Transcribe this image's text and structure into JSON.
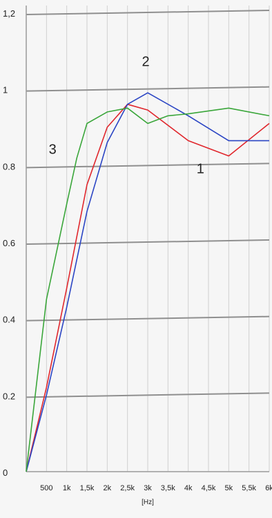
{
  "chart_data": {
    "type": "line",
    "title": "",
    "xlabel": "[Hz]",
    "ylabel": "",
    "xlim": [
      0,
      6000
    ],
    "ylim": [
      0,
      1.2
    ],
    "grid": true,
    "x_ticks": [
      500,
      1000,
      1500,
      2000,
      2500,
      3000,
      3500,
      4000,
      4500,
      5000,
      5500,
      6000
    ],
    "x_tick_labels": [
      "500",
      "1k",
      "1,5k",
      "2k",
      "2,5k",
      "3k",
      "3,5k",
      "4k",
      "4,5k",
      "5k",
      "5,5k",
      "6k"
    ],
    "y_ticks": [
      0,
      0.2,
      0.4,
      0.6,
      0.8,
      1.0,
      1.2
    ],
    "y_tick_labels": [
      "0",
      "0.2",
      "0.4",
      "0.6",
      "0.8",
      "1",
      "1,2"
    ],
    "series": [
      {
        "name": "1",
        "color": "#e0262c",
        "x": [
          0,
          500,
          1000,
          1500,
          2000,
          2500,
          3000,
          4000,
          5000,
          6000
        ],
        "y": [
          0,
          0.22,
          0.48,
          0.75,
          0.9,
          0.96,
          0.945,
          0.865,
          0.825,
          0.91
        ]
      },
      {
        "name": "2",
        "color": "#2b45c4",
        "x": [
          0,
          500,
          1000,
          1500,
          2000,
          2500,
          3000,
          4000,
          5000,
          6000
        ],
        "y": [
          0,
          0.2,
          0.43,
          0.68,
          0.86,
          0.96,
          0.99,
          0.93,
          0.865,
          0.865
        ]
      },
      {
        "name": "3",
        "color": "#3aa63a",
        "x": [
          0,
          500,
          1000,
          1250,
          1500,
          2000,
          2500,
          3000,
          3500,
          4000,
          5000,
          6000
        ],
        "y": [
          0,
          0.45,
          0.7,
          0.82,
          0.91,
          0.94,
          0.95,
          0.91,
          0.93,
          0.935,
          0.95,
          0.93
        ]
      }
    ]
  }
}
